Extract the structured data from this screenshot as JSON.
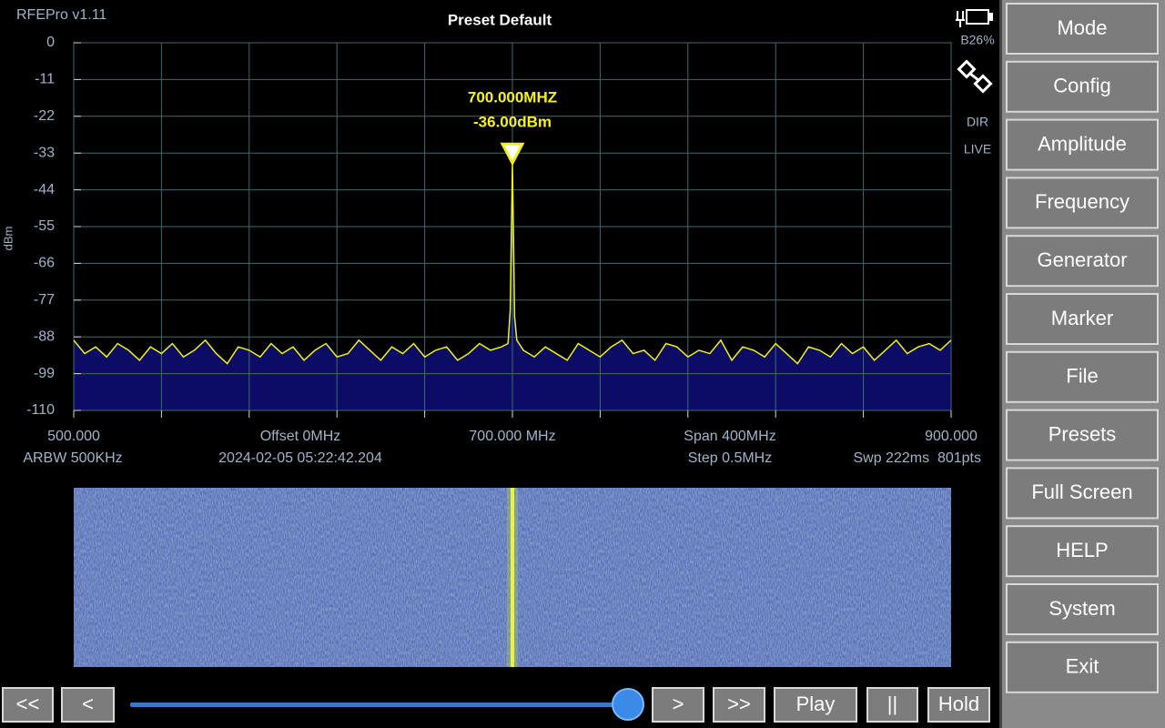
{
  "app": {
    "version": "RFEPro v1.11",
    "battery": "B26%",
    "mode_dir": "DIR",
    "mode_live": "LIVE"
  },
  "chart_data": {
    "type": "line",
    "title": "Preset Default",
    "y_label": "dBm",
    "x": [
      500,
      505,
      510,
      515,
      520,
      525,
      530,
      535,
      540,
      545,
      550,
      555,
      560,
      565,
      570,
      575,
      580,
      585,
      590,
      595,
      600,
      605,
      610,
      615,
      620,
      625,
      630,
      635,
      640,
      645,
      650,
      655,
      660,
      665,
      670,
      675,
      680,
      685,
      690,
      695,
      698,
      699,
      700,
      701,
      702,
      705,
      710,
      715,
      720,
      725,
      730,
      735,
      740,
      745,
      750,
      755,
      760,
      765,
      770,
      775,
      780,
      785,
      790,
      795,
      800,
      805,
      810,
      815,
      820,
      825,
      830,
      835,
      840,
      845,
      850,
      855,
      860,
      865,
      870,
      875,
      880,
      885,
      890,
      895,
      900
    ],
    "series": [
      {
        "color": "#f0f020",
        "fill": "#0c0c66",
        "values": [
          -89,
          -93,
          -91,
          -94,
          -90,
          -92,
          -95,
          -91,
          -93,
          -90,
          -94,
          -92,
          -89,
          -93,
          -96,
          -91,
          -92,
          -94,
          -90,
          -93,
          -91,
          -95,
          -92,
          -90,
          -94,
          -93,
          -89,
          -92,
          -95,
          -91,
          -93,
          -90,
          -94,
          -92,
          -91,
          -95,
          -93,
          -90,
          -92,
          -91,
          -90,
          -80,
          -36,
          -82,
          -89,
          -92,
          -94,
          -91,
          -93,
          -95,
          -90,
          -92,
          -94,
          -91,
          -89,
          -93,
          -92,
          -95,
          -90,
          -91,
          -94,
          -92,
          -93,
          -89,
          -95,
          -91,
          -92,
          -94,
          -90,
          -93,
          -96,
          -91,
          -92,
          -94,
          -90,
          -93,
          -91,
          -95,
          -92,
          -89,
          -93,
          -91,
          -90,
          -92,
          -89
        ]
      }
    ],
    "xlim": [
      500,
      900
    ],
    "ylim": [
      -110,
      0
    ],
    "yticks": [
      0,
      -11,
      -22,
      -33,
      -44,
      -55,
      -66,
      -77,
      -88,
      -99,
      -110
    ],
    "xticks": [
      {
        "value": 500,
        "label": "500.000"
      },
      {
        "value": 700,
        "label": "700.000 MHz"
      },
      {
        "value": 900,
        "label": "900.000"
      }
    ],
    "xgrid": [
      500,
      540,
      580,
      620,
      660,
      700,
      740,
      780,
      820,
      860,
      900
    ],
    "grid": true,
    "marker": {
      "freq_label": "700.000MHZ",
      "level_label": "-36.00dBm",
      "x": 700,
      "y": -36
    }
  },
  "status": {
    "offset": "Offset 0MHz",
    "span": "Span 400MHz",
    "rbw": "ARBW 500KHz",
    "timestamp": "2024-02-05 05:22:42.204",
    "step": "Step 0.5MHz",
    "sweep": "Swp 222ms  801pts"
  },
  "menu": [
    "Mode",
    "Config",
    "Amplitude",
    "Frequency",
    "Generator",
    "Marker",
    "File",
    "Presets",
    "Full Screen",
    "HELP",
    "System",
    "Exit"
  ],
  "playback": [
    "<<",
    "<",
    ">",
    ">>",
    "Play",
    "||",
    "Hold"
  ]
}
